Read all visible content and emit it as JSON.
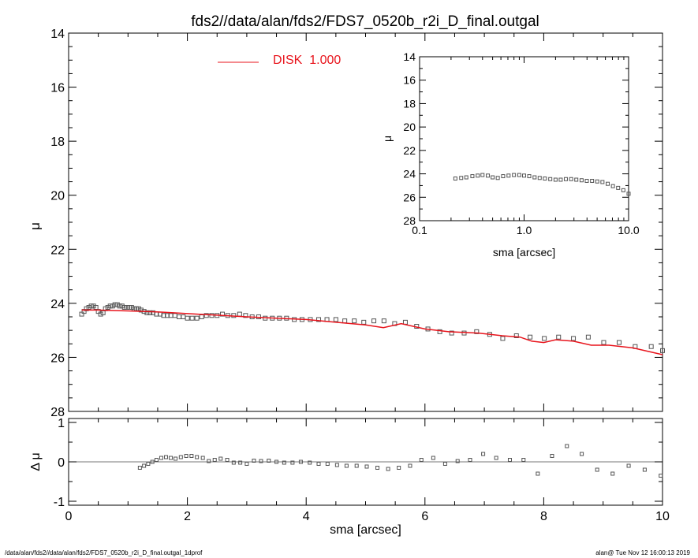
{
  "title": "fds2//data/alan/fds2/FDS7_0520b_r2i_D_final.outgal",
  "footer": {
    "left": "/data/alan/fds2//data/alan/fds2/FDS7_0520b_r2i_D_final.outgal_1dprof",
    "right": "alan@  Tue Nov 12 16:00:13 2019"
  },
  "colors": {
    "model": "#e8141c",
    "data": "#555555",
    "axis": "#000000",
    "ref_line": "#777777"
  },
  "chart_data": [
    {
      "id": "main-profile",
      "type": "scatter",
      "xlabel": "",
      "ylabel": "μ",
      "xlim": [
        0,
        10
      ],
      "ylim": [
        28,
        14
      ],
      "yticks": [
        14,
        16,
        18,
        20,
        22,
        24,
        26,
        28
      ],
      "legend": {
        "label": "DISK  1.000",
        "position": "top-left",
        "color": "#e8141c"
      },
      "series": [
        {
          "name": "data",
          "style": "open-squares",
          "x": [
            0.22,
            0.26,
            0.3,
            0.34,
            0.38,
            0.42,
            0.46,
            0.5,
            0.54,
            0.58,
            0.62,
            0.66,
            0.7,
            0.74,
            0.78,
            0.82,
            0.86,
            0.9,
            0.94,
            0.98,
            1.02,
            1.06,
            1.1,
            1.14,
            1.18,
            1.22,
            1.27,
            1.32,
            1.37,
            1.42,
            1.48,
            1.54,
            1.6,
            1.66,
            1.72,
            1.79,
            1.86,
            1.93,
            2.0,
            2.08,
            2.16,
            2.24,
            2.32,
            2.41,
            2.5,
            2.59,
            2.68,
            2.78,
            2.88,
            2.98,
            3.09,
            3.2,
            3.31,
            3.43,
            3.55,
            3.67,
            3.8,
            3.93,
            4.07,
            4.21,
            4.35,
            4.5,
            4.65,
            4.81,
            4.97,
            5.14,
            5.31,
            5.49,
            5.67,
            5.86,
            6.05,
            6.25,
            6.45,
            6.66,
            6.87,
            7.09,
            7.31,
            7.54,
            7.77,
            8.01,
            8.25,
            8.5,
            8.75,
            9.01,
            9.27,
            9.54,
            9.81,
            10.0
          ],
          "y": [
            24.4,
            24.3,
            24.2,
            24.15,
            24.1,
            24.1,
            24.15,
            24.3,
            24.4,
            24.35,
            24.2,
            24.15,
            24.1,
            24.1,
            24.05,
            24.05,
            24.1,
            24.1,
            24.15,
            24.15,
            24.15,
            24.15,
            24.2,
            24.2,
            24.2,
            24.25,
            24.3,
            24.35,
            24.35,
            24.35,
            24.4,
            24.4,
            24.45,
            24.45,
            24.45,
            24.45,
            24.5,
            24.5,
            24.55,
            24.55,
            24.55,
            24.5,
            24.45,
            24.45,
            24.45,
            24.4,
            24.45,
            24.45,
            24.4,
            24.45,
            24.5,
            24.5,
            24.55,
            24.55,
            24.55,
            24.55,
            24.6,
            24.6,
            24.6,
            24.6,
            24.6,
            24.6,
            24.65,
            24.65,
            24.7,
            24.65,
            24.65,
            24.75,
            24.7,
            24.85,
            24.95,
            25.05,
            25.1,
            25.1,
            25.05,
            25.15,
            25.3,
            25.2,
            25.25,
            25.3,
            25.25,
            25.3,
            25.25,
            25.45,
            25.45,
            25.6,
            25.6,
            25.75
          ]
        },
        {
          "name": "DISK  1.000",
          "style": "line",
          "x": [
            0.22,
            0.5,
            1.0,
            1.5,
            2.0,
            2.5,
            3.0,
            3.5,
            4.0,
            4.5,
            5.0,
            5.3,
            5.6,
            6.0,
            6.4,
            6.9,
            7.3,
            7.6,
            7.8,
            8.0,
            8.2,
            8.5,
            8.8,
            9.1,
            9.5,
            10.0
          ],
          "y": [
            24.25,
            24.25,
            24.28,
            24.32,
            24.38,
            24.44,
            24.5,
            24.55,
            24.6,
            24.7,
            24.8,
            24.9,
            24.75,
            24.95,
            25.05,
            25.1,
            25.2,
            25.25,
            25.4,
            25.45,
            25.35,
            25.4,
            25.55,
            25.55,
            25.65,
            25.9
          ]
        }
      ]
    },
    {
      "id": "residual",
      "type": "scatter",
      "xlabel": "sma [arcsec]",
      "ylabel": "Δ μ",
      "xlim": [
        0,
        10
      ],
      "ylim": [
        -1.1,
        1.1
      ],
      "xticks": [
        0,
        2,
        4,
        6,
        8,
        10
      ],
      "yticks": [
        -1,
        0,
        1
      ],
      "series": [
        {
          "name": "residual",
          "style": "open-squares",
          "x": [
            1.2,
            1.27,
            1.34,
            1.41,
            1.48,
            1.56,
            1.64,
            1.72,
            1.8,
            1.89,
            1.98,
            2.07,
            2.16,
            2.26,
            2.36,
            2.46,
            2.56,
            2.67,
            2.78,
            2.89,
            3.0,
            3.12,
            3.24,
            3.37,
            3.5,
            3.63,
            3.77,
            3.91,
            4.06,
            4.21,
            4.36,
            4.52,
            4.68,
            4.85,
            5.02,
            5.2,
            5.38,
            5.56,
            5.75,
            5.94,
            6.14,
            6.34,
            6.55,
            6.76,
            6.98,
            7.2,
            7.43,
            7.66,
            7.9,
            8.14,
            8.39,
            8.64,
            8.9,
            9.16,
            9.43,
            9.7,
            9.97
          ],
          "y": [
            -0.15,
            -0.1,
            -0.05,
            0.0,
            0.05,
            0.1,
            0.12,
            0.1,
            0.08,
            0.12,
            0.15,
            0.15,
            0.12,
            0.1,
            0.02,
            0.05,
            0.08,
            0.05,
            -0.02,
            -0.02,
            -0.05,
            0.03,
            0.02,
            0.03,
            0.0,
            -0.02,
            -0.02,
            0.0,
            -0.02,
            -0.05,
            -0.05,
            -0.08,
            -0.1,
            -0.1,
            -0.12,
            -0.15,
            -0.18,
            -0.15,
            -0.1,
            0.05,
            0.1,
            -0.05,
            0.02,
            0.05,
            0.2,
            0.1,
            0.05,
            0.05,
            -0.3,
            0.15,
            0.4,
            0.2,
            -0.2,
            -0.3,
            -0.1,
            -0.2,
            -0.35
          ]
        }
      ]
    },
    {
      "id": "inset",
      "type": "scatter",
      "xlabel": "sma [arcsec]",
      "ylabel": "μ",
      "xscale": "log",
      "xlim": [
        0.1,
        10.0
      ],
      "ylim": [
        28,
        14
      ],
      "xticks": [
        0.1,
        1.0,
        10.0
      ],
      "xtick_labels": [
        "0.1",
        "1.0",
        "10.0"
      ],
      "yticks": [
        14,
        16,
        18,
        20,
        22,
        24,
        26,
        28
      ],
      "series": [
        {
          "name": "inset-data",
          "style": "open-squares",
          "x": [
            0.22,
            0.25,
            0.28,
            0.32,
            0.36,
            0.4,
            0.45,
            0.5,
            0.56,
            0.63,
            0.71,
            0.8,
            0.9,
            1.0,
            1.12,
            1.26,
            1.41,
            1.58,
            1.78,
            2.0,
            2.24,
            2.51,
            2.82,
            3.16,
            3.55,
            3.98,
            4.47,
            5.01,
            5.62,
            6.31,
            7.08,
            7.94,
            8.91,
            10.0
          ],
          "y": [
            24.4,
            24.35,
            24.3,
            24.2,
            24.15,
            24.1,
            24.15,
            24.3,
            24.35,
            24.2,
            24.15,
            24.1,
            24.1,
            24.15,
            24.2,
            24.3,
            24.35,
            24.4,
            24.45,
            24.5,
            24.5,
            24.45,
            24.45,
            24.5,
            24.55,
            24.6,
            24.6,
            24.65,
            24.7,
            24.85,
            25.05,
            25.2,
            25.4,
            25.7
          ]
        }
      ]
    }
  ]
}
